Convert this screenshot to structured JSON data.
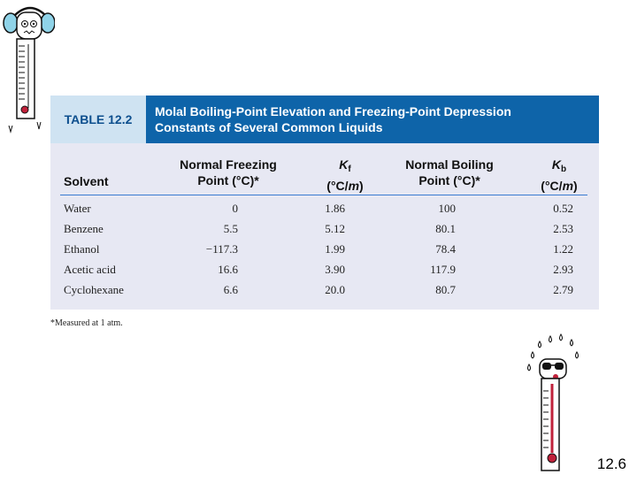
{
  "table": {
    "label": "TABLE 12.2",
    "caption_line1": "Molal Boiling-Point Elevation and Freezing-Point Depression",
    "caption_line2": "Constants of Several Common Liquids",
    "headers": {
      "solvent": "Solvent",
      "freezing_line1": "Normal Freezing",
      "freezing_line2": "Point (°C)*",
      "kf_symbol": "K",
      "kf_sub": "f",
      "kf_unit_open": "(°C/",
      "kf_unit_m": "m",
      "kf_unit_close": ")",
      "boiling_line1": "Normal Boiling",
      "boiling_line2": "Point (°C)*",
      "kb_symbol": "K",
      "kb_sub": "b",
      "kb_unit_open": "(°C/",
      "kb_unit_m": "m",
      "kb_unit_close": ")"
    },
    "rows": [
      {
        "solvent": "Water",
        "freezing": "0",
        "kf": "1.86",
        "boiling": "100",
        "kb": "0.52"
      },
      {
        "solvent": "Benzene",
        "freezing": "5.5",
        "kf": "5.12",
        "boiling": "80.1",
        "kb": "2.53"
      },
      {
        "solvent": "Ethanol",
        "freezing": "−117.3",
        "kf": "1.99",
        "boiling": "78.4",
        "kb": "1.22"
      },
      {
        "solvent": "Acetic acid",
        "freezing": "16.6",
        "kf": "3.90",
        "boiling": "117.9",
        "kb": "2.93"
      },
      {
        "solvent": "Cyclohexane",
        "freezing": "6.6",
        "kf": "20.0",
        "boiling": "80.7",
        "kb": "2.79"
      }
    ],
    "footnote": "*Measured at 1 atm."
  },
  "page_number": "12.6",
  "colors": {
    "title_bar": "#0e64a9",
    "label_bg": "#cfe3f2",
    "label_text": "#0d4f8e",
    "table_bg": "#e7e8f3",
    "divider": "#3a7bd0"
  },
  "icons": {
    "top_left": "cold-thermometer-clipart-icon",
    "bottom_right": "hot-thermometer-clipart-icon"
  }
}
